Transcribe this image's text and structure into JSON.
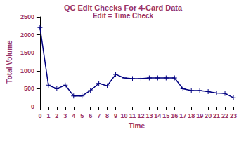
{
  "chart_data": {
    "type": "line",
    "title": "QC Edit Checks For 4-Card Data",
    "subtitle": "Edit = Time Check",
    "x_label": "Time",
    "y_label": "Total Volume",
    "categories": [
      "0",
      "1",
      "2",
      "3",
      "4",
      "5",
      "6",
      "7",
      "8",
      "9",
      "10",
      "11",
      "12",
      "13",
      "14",
      "15",
      "16",
      "17",
      "18",
      "19",
      "20",
      "21",
      "22",
      "23"
    ],
    "values": [
      2200,
      600,
      500,
      600,
      300,
      300,
      450,
      650,
      580,
      900,
      800,
      780,
      780,
      800,
      800,
      800,
      800,
      500,
      450,
      450,
      420,
      380,
      370,
      250
    ],
    "color": "#000080",
    "marker": "plus",
    "ylim": [
      0,
      2500
    ],
    "yticks": [
      0,
      500,
      1000,
      1500,
      2000,
      2500
    ],
    "grid": false
  }
}
